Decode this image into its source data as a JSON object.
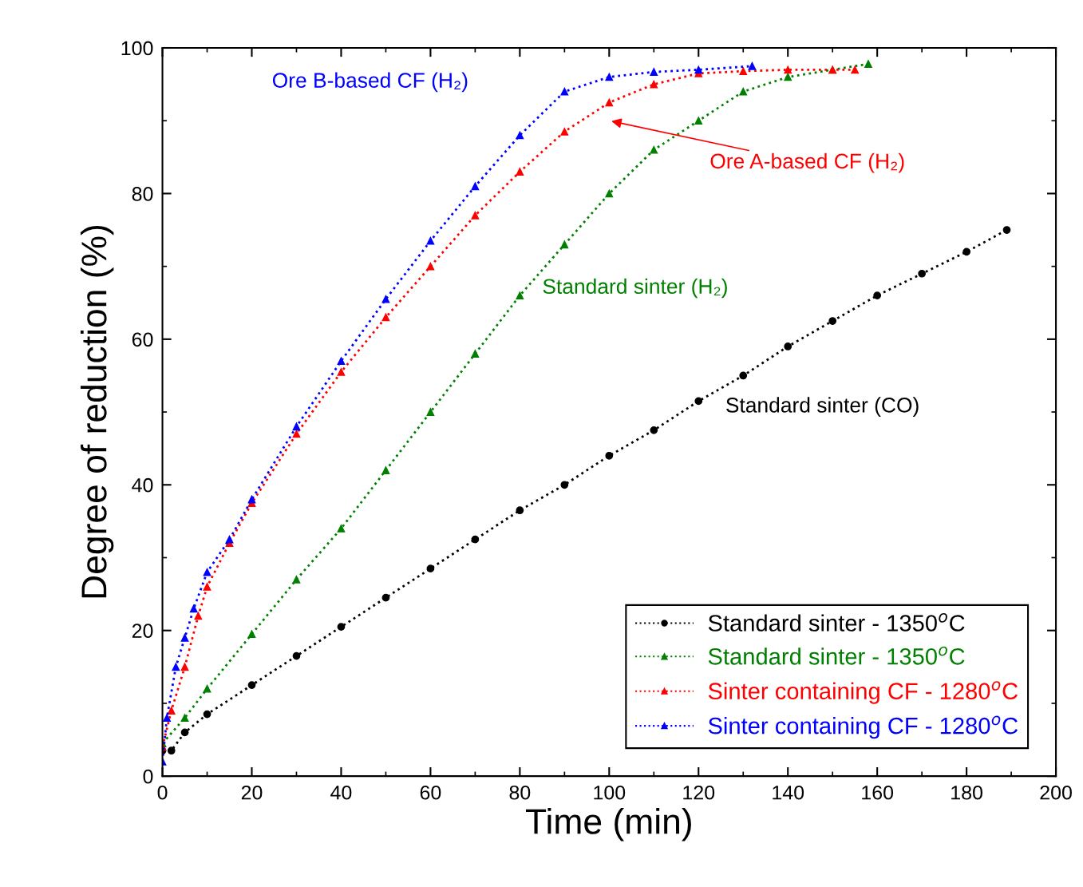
{
  "chart_data": {
    "type": "line",
    "xlabel": "Time (min)",
    "ylabel": "Degree of reduction (%)",
    "xlim": [
      0,
      200
    ],
    "ylim": [
      0,
      100
    ],
    "xticks": [
      0,
      20,
      40,
      60,
      80,
      100,
      120,
      140,
      160,
      180,
      200
    ],
    "yticks": [
      0,
      20,
      40,
      60,
      80,
      100
    ],
    "grid": false,
    "legend": "bottom right",
    "line_style": "dotted",
    "series": [
      {
        "name": "Standard sinter - 1350$^{o}$C",
        "color": "#000000",
        "marker": "circle",
        "x": [
          0,
          2,
          5,
          10,
          20,
          30,
          40,
          50,
          60,
          70,
          80,
          90,
          100,
          110,
          120,
          130,
          140,
          150,
          160,
          170,
          180,
          189
        ],
        "values": [
          3.5,
          3.5,
          6,
          8.5,
          12.5,
          16.5,
          20.5,
          24.5,
          28.5,
          32.5,
          36.5,
          40,
          44,
          47.5,
          51.5,
          55,
          59,
          62.5,
          66,
          69,
          72,
          75
        ]
      },
      {
        "name": "Standard sinter - 1350$^{o}$C",
        "color": "#008000",
        "marker": "triangle",
        "x": [
          0,
          5,
          10,
          20,
          30,
          40,
          50,
          60,
          70,
          80,
          90,
          100,
          110,
          120,
          130,
          140,
          150,
          158
        ],
        "values": [
          4.5,
          8,
          12,
          19.5,
          27,
          34,
          42,
          50,
          58,
          66,
          73,
          80,
          86,
          90,
          94,
          96,
          97,
          97.8
        ]
      },
      {
        "name": "Sinter containing CF - 1280$^{o}$C",
        "color": "#ff0000",
        "marker": "triangle",
        "x": [
          0,
          2,
          5,
          8,
          10,
          15,
          20,
          30,
          40,
          50,
          60,
          70,
          80,
          90,
          100,
          110,
          120,
          130,
          140,
          150,
          155
        ],
        "values": [
          4,
          9,
          15,
          22,
          26,
          32,
          37.5,
          47,
          55.5,
          63,
          70,
          77,
          83,
          88.5,
          92.5,
          95,
          96.5,
          96.8,
          97,
          97,
          97
        ]
      },
      {
        "name": "Sinter containing CF - 1280$^{o}$C",
        "color": "#0000ff",
        "marker": "triangle",
        "x": [
          0,
          1,
          3,
          5,
          7,
          10,
          15,
          20,
          30,
          40,
          50,
          60,
          70,
          80,
          90,
          100,
          110,
          120,
          132
        ],
        "values": [
          2,
          8,
          15,
          19,
          23,
          28,
          32.5,
          38,
          48,
          57,
          65.5,
          73.5,
          81,
          88,
          94,
          96,
          96.7,
          97,
          97.5
        ]
      }
    ],
    "annotations": [
      "Ore B-based CF (H₂)",
      "Ore A-based CF (H₂)",
      "Standard sinter (H₂)",
      "Standard sinter (CO)"
    ]
  }
}
